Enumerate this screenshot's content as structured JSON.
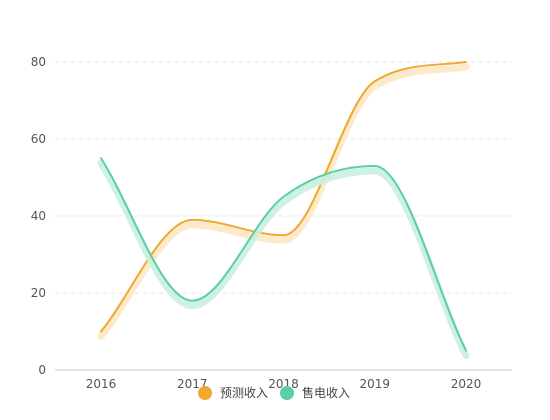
{
  "chart_data": {
    "type": "line",
    "categories": [
      "2016",
      "2017",
      "2018",
      "2019",
      "2020"
    ],
    "series": [
      {
        "name": "预测收入",
        "values": [
          10,
          39,
          35,
          75,
          80
        ],
        "color": "#F0A830",
        "glow": "#FCE8C4"
      },
      {
        "name": "售电收入",
        "values": [
          55,
          18,
          45,
          53,
          5
        ],
        "color": "#5CCFA2",
        "glow": "#C9F0E0"
      }
    ],
    "ylim": [
      0,
      80
    ],
    "yticks": [
      0,
      20,
      40,
      60,
      80
    ],
    "grid": true,
    "legend_position": "bottom-center",
    "smooth": true
  }
}
